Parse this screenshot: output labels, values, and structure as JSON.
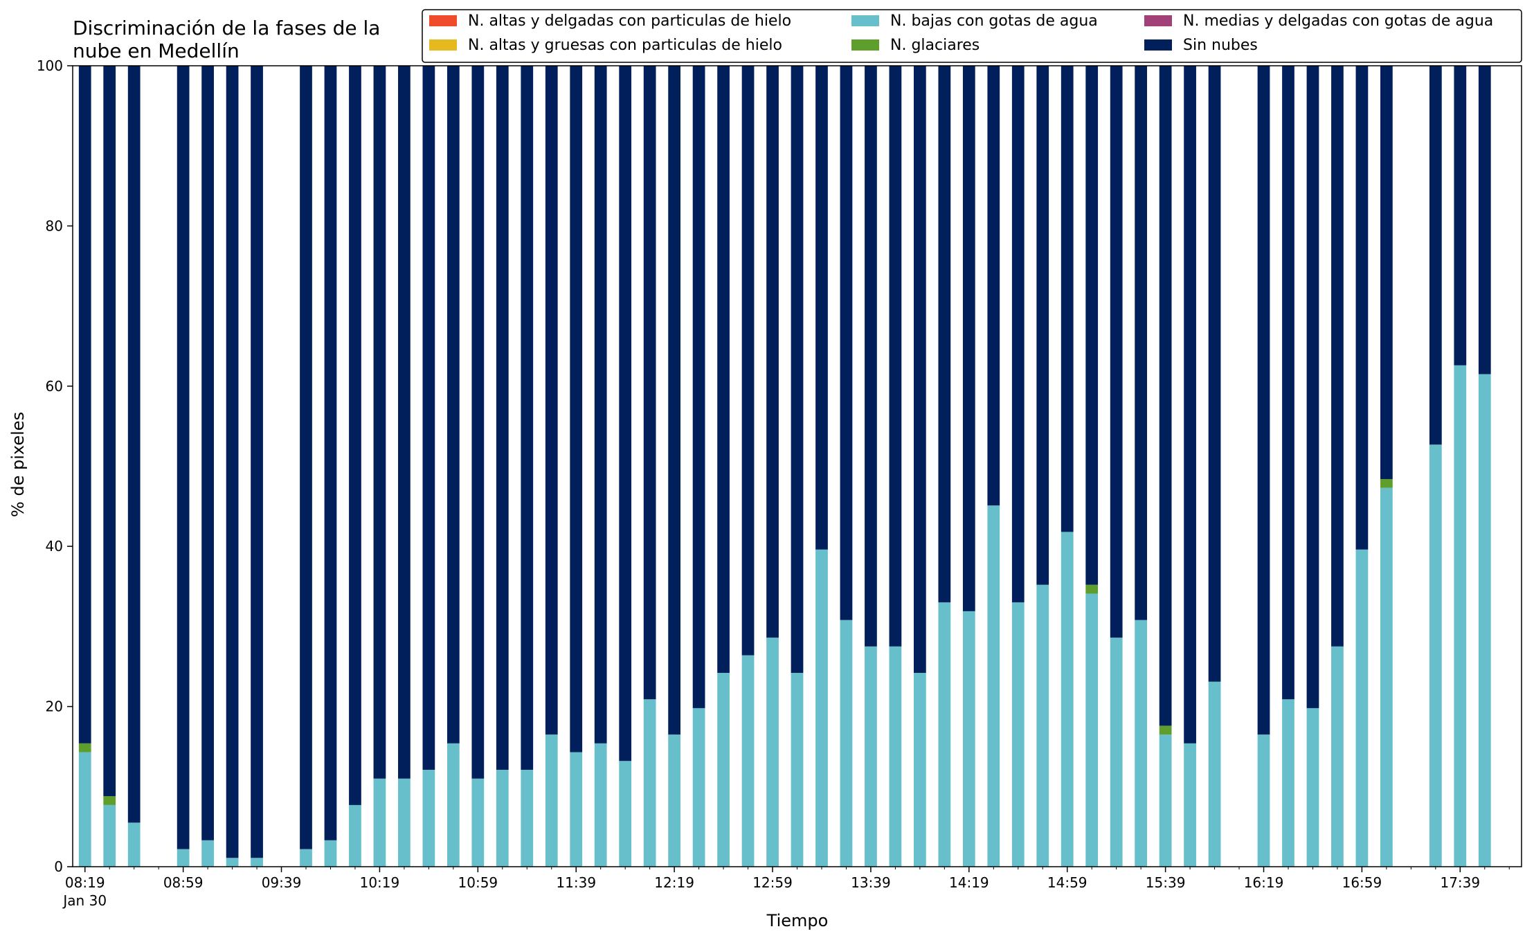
{
  "chart_data": {
    "type": "bar",
    "stacked": true,
    "title_lines": [
      "Discriminación de la fases de la",
      "nube en Medellín"
    ],
    "xlabel": "Tiempo",
    "ylabel": "% de pixeles",
    "ylim": [
      0,
      100
    ],
    "yticks": [
      0,
      20,
      40,
      60,
      80,
      100
    ],
    "x_unit": "minutes since 08:19",
    "xlim": [
      -5,
      585
    ],
    "xticks": [
      {
        "t": 0,
        "label": "08:19",
        "sub": "Jan 30"
      },
      {
        "t": 40,
        "label": "08:59"
      },
      {
        "t": 80,
        "label": "09:39"
      },
      {
        "t": 120,
        "label": "10:19"
      },
      {
        "t": 160,
        "label": "10:59"
      },
      {
        "t": 200,
        "label": "11:39"
      },
      {
        "t": 240,
        "label": "12:19"
      },
      {
        "t": 280,
        "label": "12:59"
      },
      {
        "t": 320,
        "label": "13:39"
      },
      {
        "t": 360,
        "label": "14:19"
      },
      {
        "t": 400,
        "label": "14:59"
      },
      {
        "t": 440,
        "label": "15:39"
      },
      {
        "t": 480,
        "label": "16:19"
      },
      {
        "t": 520,
        "label": "16:59"
      },
      {
        "t": 560,
        "label": "17:39"
      }
    ],
    "minor_tick_step": 10,
    "grid": false,
    "legend_position": "top-right",
    "x": [
      0,
      10,
      20,
      40,
      50,
      60,
      70,
      90,
      100,
      110,
      120,
      130,
      140,
      150,
      160,
      170,
      180,
      190,
      200,
      210,
      220,
      230,
      240,
      250,
      260,
      270,
      280,
      290,
      300,
      310,
      320,
      330,
      340,
      350,
      360,
      370,
      380,
      390,
      400,
      410,
      420,
      430,
      440,
      450,
      460,
      480,
      490,
      500,
      510,
      520,
      530,
      550,
      560,
      570
    ],
    "series": [
      {
        "name": "N. altas y delgadas con particulas de hielo",
        "color": "#ee4c2c",
        "values": [
          0,
          0,
          0,
          0,
          0,
          0,
          0,
          0,
          0,
          0,
          0,
          0,
          0,
          0,
          0,
          0,
          0,
          0,
          0,
          0,
          0,
          0,
          0,
          0,
          0,
          0,
          0,
          0,
          0,
          0,
          0,
          0,
          0,
          0,
          0,
          0,
          0,
          0,
          0,
          0,
          0,
          0,
          0,
          0,
          0,
          0,
          0,
          0,
          0,
          0,
          0,
          0,
          0,
          0
        ]
      },
      {
        "name": "N. altas y gruesas con particulas de hielo",
        "color": "#e6b91e",
        "values": [
          0,
          0,
          0,
          0,
          0,
          0,
          0,
          0,
          0,
          0,
          0,
          0,
          0,
          0,
          0,
          0,
          0,
          0,
          0,
          0,
          0,
          0,
          0,
          0,
          0,
          0,
          0,
          0,
          0,
          0,
          0,
          0,
          0,
          0,
          0,
          0,
          0,
          0,
          0,
          0,
          0,
          0,
          0,
          0,
          0,
          0,
          0,
          0,
          0,
          0,
          0,
          0,
          0,
          0
        ]
      },
      {
        "name": "N. bajas con gotas de agua",
        "color": "#66bfcb",
        "values": [
          14.3,
          7.7,
          5.5,
          2.2,
          3.3,
          1.1,
          1.1,
          2.2,
          3.3,
          7.7,
          11.0,
          11.0,
          12.1,
          15.4,
          11.0,
          12.1,
          12.1,
          16.5,
          14.3,
          15.4,
          13.2,
          20.9,
          16.5,
          19.8,
          24.2,
          26.4,
          28.6,
          24.2,
          39.6,
          30.8,
          27.5,
          27.5,
          24.2,
          33.0,
          31.9,
          45.1,
          33.0,
          35.2,
          41.8,
          34.1,
          28.6,
          30.8,
          16.5,
          15.4,
          23.1,
          16.5,
          20.9,
          19.8,
          27.5,
          39.6,
          47.3,
          52.7,
          62.6,
          61.5
        ]
      },
      {
        "name": "N. glaciares",
        "color": "#5e9e2c",
        "values": [
          1.1,
          1.1,
          0,
          0,
          0,
          0,
          0,
          0,
          0,
          0,
          0,
          0,
          0,
          0,
          0,
          0,
          0,
          0,
          0,
          0,
          0,
          0,
          0,
          0,
          0,
          0,
          0,
          0,
          0,
          0,
          0,
          0,
          0,
          0,
          0,
          0,
          0,
          0,
          0,
          1.1,
          0,
          0,
          1.1,
          0,
          0,
          0,
          0,
          0,
          0,
          0,
          1.1,
          0,
          0,
          0
        ]
      },
      {
        "name": "N. medias y delgadas con gotas de agua",
        "color": "#a14178",
        "values": [
          0,
          0,
          0,
          0,
          0,
          0,
          0,
          0,
          0,
          0,
          0,
          0,
          0,
          0,
          0,
          0,
          0,
          0,
          0,
          0,
          0,
          0,
          0,
          0,
          0,
          0,
          0,
          0,
          0,
          0,
          0,
          0,
          0,
          0,
          0,
          0,
          0,
          0,
          0,
          0,
          0,
          0,
          0,
          0,
          0,
          0,
          0,
          0,
          0,
          0,
          0,
          0,
          0,
          0
        ]
      },
      {
        "name": "Sin nubes",
        "color": "#011f5b",
        "values": [
          84.6,
          91.2,
          94.5,
          97.8,
          96.7,
          98.9,
          98.9,
          97.8,
          96.7,
          92.3,
          89.0,
          89.0,
          87.9,
          84.6,
          89.0,
          87.9,
          87.9,
          83.5,
          85.7,
          84.6,
          86.8,
          79.1,
          83.5,
          80.2,
          75.8,
          73.6,
          71.4,
          75.8,
          60.4,
          69.2,
          72.5,
          72.5,
          75.8,
          67.0,
          68.1,
          54.9,
          67.0,
          64.8,
          58.2,
          64.8,
          71.4,
          69.2,
          82.4,
          84.6,
          76.9,
          83.5,
          79.1,
          80.2,
          72.5,
          60.4,
          51.6,
          47.3,
          37.4,
          38.5
        ]
      }
    ],
    "legend_order": [
      0,
      1,
      2,
      3,
      4,
      5
    ]
  }
}
